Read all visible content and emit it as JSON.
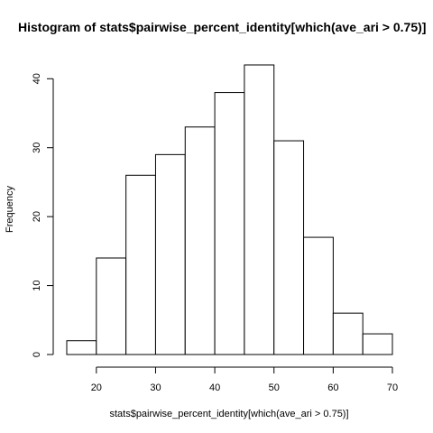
{
  "chart_data": {
    "type": "bar",
    "title": "Histogram of stats$pairwise_percent_identity[which(ave_ari > 0.75)]",
    "xlabel": "stats$pairwise_percent_identity[which(ave_ari > 0.75)]",
    "ylabel": "Frequency",
    "bins": [
      {
        "x0": 15,
        "x1": 20,
        "count": 2
      },
      {
        "x0": 20,
        "x1": 25,
        "count": 14
      },
      {
        "x0": 25,
        "x1": 30,
        "count": 26
      },
      {
        "x0": 30,
        "x1": 35,
        "count": 29
      },
      {
        "x0": 35,
        "x1": 40,
        "count": 33
      },
      {
        "x0": 40,
        "x1": 45,
        "count": 38
      },
      {
        "x0": 45,
        "x1": 50,
        "count": 42
      },
      {
        "x0": 50,
        "x1": 55,
        "count": 31
      },
      {
        "x0": 55,
        "x1": 60,
        "count": 17
      },
      {
        "x0": 60,
        "x1": 65,
        "count": 6
      },
      {
        "x0": 65,
        "x1": 70,
        "count": 3
      }
    ],
    "xlim": [
      15,
      70
    ],
    "ylim": [
      0,
      42
    ],
    "x_ticks": [
      20,
      30,
      40,
      50,
      60,
      70
    ],
    "x_tick_labels": [
      "20",
      "30",
      "40",
      "50",
      "60",
      "70"
    ],
    "y_ticks": [
      0,
      10,
      20,
      30,
      40
    ],
    "y_tick_labels": [
      "0",
      "10",
      "20",
      "30",
      "40"
    ],
    "grid": false,
    "legend": "none",
    "colors": {
      "bar_fill": "#ffffff",
      "bar_stroke": "#000000"
    }
  }
}
